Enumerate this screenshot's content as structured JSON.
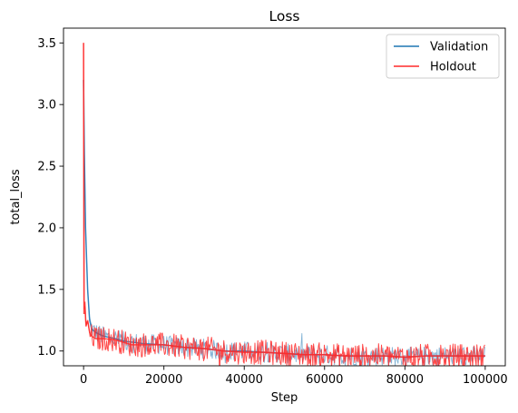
{
  "chart_data": {
    "type": "line",
    "title": "Loss",
    "xlabel": "Step",
    "ylabel": "total_loss",
    "xlim": [
      -5000,
      105000
    ],
    "ylim": [
      0.88,
      3.62
    ],
    "xticks": [
      0,
      20000,
      40000,
      60000,
      80000,
      100000
    ],
    "xtick_labels": [
      "0",
      "20000",
      "40000",
      "60000",
      "80000",
      "100000"
    ],
    "yticks": [
      1.0,
      1.5,
      2.0,
      2.5,
      3.0,
      3.5
    ],
    "ytick_labels": [
      "1.0",
      "1.5",
      "2.0",
      "2.5",
      "3.0",
      "3.5"
    ],
    "legend_position": "top-right",
    "grid": false,
    "series": [
      {
        "name": "Validation",
        "color": "#1f77b4",
        "x": [
          0,
          200,
          500,
          1000,
          1500,
          2000,
          3000,
          5000,
          8000,
          10000,
          15000,
          20000,
          25000,
          30000,
          35000,
          40000,
          45000,
          50000,
          55000,
          60000,
          65000,
          70000,
          75000,
          80000,
          85000,
          90000,
          95000,
          100000
        ],
        "y": [
          3.2,
          2.6,
          2.0,
          1.5,
          1.25,
          1.18,
          1.15,
          1.12,
          1.1,
          1.08,
          1.06,
          1.05,
          1.03,
          1.02,
          1.0,
          1.0,
          0.99,
          0.98,
          0.97,
          0.97,
          0.96,
          0.96,
          0.96,
          0.95,
          0.96,
          0.96,
          0.96,
          0.96
        ]
      },
      {
        "name": "Holdout",
        "color": "#ff2a2a",
        "x": [
          0,
          100,
          300,
          600,
          1000,
          1500,
          2000,
          3000,
          5000,
          8000,
          10000,
          12000,
          15000,
          20000,
          25000,
          30000,
          35000,
          40000,
          45000,
          50000,
          55000,
          60000,
          65000,
          70000,
          75000,
          80000,
          85000,
          90000,
          95000,
          100000
        ],
        "y": [
          3.5,
          1.3,
          1.4,
          1.2,
          1.25,
          1.15,
          1.12,
          1.1,
          1.1,
          1.09,
          1.07,
          1.05,
          1.05,
          1.05,
          1.03,
          1.02,
          1.0,
          0.99,
          0.99,
          0.98,
          0.97,
          0.97,
          0.96,
          0.96,
          0.96,
          0.95,
          0.96,
          0.96,
          0.96,
          0.96
        ]
      }
    ]
  }
}
